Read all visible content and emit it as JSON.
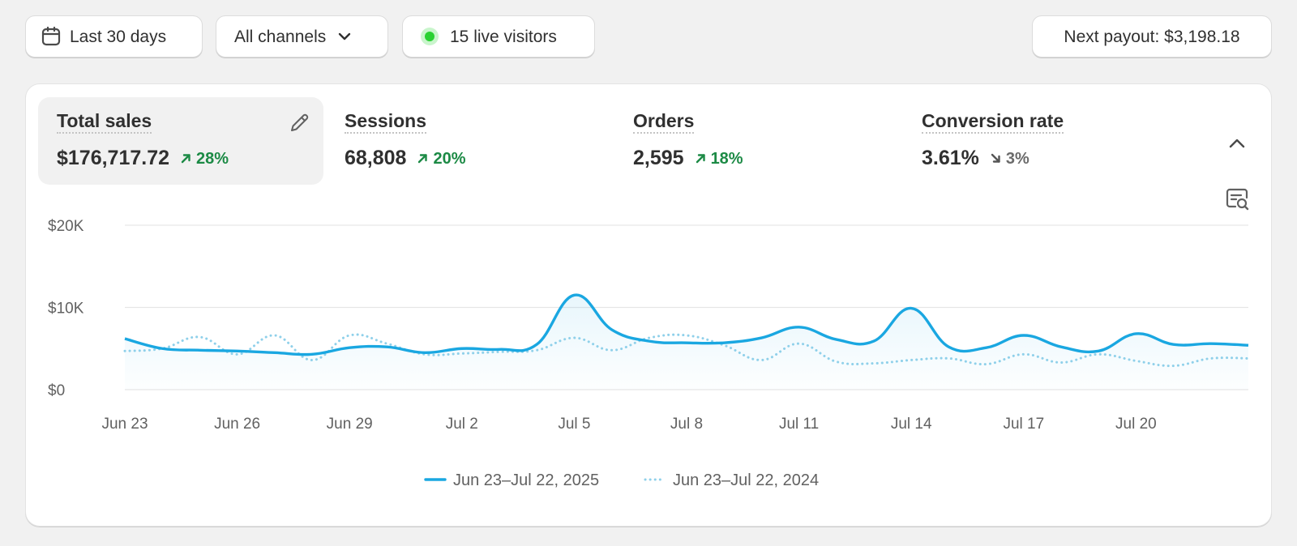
{
  "toolbar": {
    "date_range": "Last 30 days",
    "channels": "All channels",
    "live_visitors": "15 live visitors",
    "payout": "Next payout: $3,198.18"
  },
  "metrics": [
    {
      "label": "Total sales",
      "value": "$176,717.72",
      "delta": "28%",
      "trend": "up",
      "selected": true
    },
    {
      "label": "Sessions",
      "value": "68,808",
      "delta": "20%",
      "trend": "up",
      "selected": false
    },
    {
      "label": "Orders",
      "value": "2,595",
      "delta": "18%",
      "trend": "up",
      "selected": false
    },
    {
      "label": "Conversion rate",
      "value": "3.61%",
      "delta": "3%",
      "trend": "down",
      "selected": false
    }
  ],
  "icons": {
    "date": "calendar-icon",
    "channels": "chevron-down-icon",
    "live": "live-status-dot-icon",
    "edit": "pencil-icon",
    "collapse": "chevron-up-icon",
    "insight": "chat-search-icon"
  },
  "colors": {
    "accent": "#1aa7e1",
    "comparison": "#8fd0ea",
    "positive": "#1c8a45",
    "neutral": "#6b6b6b",
    "live": "#2ad132"
  },
  "chart_data": {
    "type": "line",
    "title": "",
    "xlabel": "",
    "ylabel": "",
    "ylim": [
      0,
      20000
    ],
    "y_ticks": [
      "$0",
      "$10K",
      "$20K"
    ],
    "y_tick_values": [
      0,
      10000,
      20000
    ],
    "x_tick_labels": [
      "Jun 23",
      "Jun 26",
      "Jun 29",
      "Jul 2",
      "Jul 5",
      "Jul 8",
      "Jul 11",
      "Jul 14",
      "Jul 17",
      "Jul 20"
    ],
    "x_tick_indices": [
      0,
      3,
      6,
      9,
      12,
      15,
      18,
      21,
      24,
      27
    ],
    "grid": true,
    "legend_position": "bottom-center",
    "series": [
      {
        "name": "Jun 23–Jul 22, 2025",
        "style": "solid",
        "values": [
          6200,
          5000,
          4800,
          4700,
          4500,
          4300,
          5100,
          5200,
          4500,
          5000,
          4900,
          5500,
          11500,
          7300,
          5900,
          5700,
          5700,
          6300,
          7600,
          6100,
          5900,
          9900,
          5200,
          5100,
          6600,
          5200,
          4700,
          6800,
          5500,
          5600,
          5400
        ]
      },
      {
        "name": "Jun 23–Jul 22, 2024",
        "style": "dotted",
        "values": [
          4700,
          5000,
          6400,
          4300,
          6600,
          3600,
          6600,
          5600,
          4300,
          4400,
          4600,
          4800,
          6300,
          4800,
          6300,
          6600,
          5400,
          3600,
          5600,
          3400,
          3200,
          3600,
          3800,
          3100,
          4300,
          3300,
          4300,
          3500,
          2900,
          3800,
          3800
        ]
      }
    ]
  }
}
